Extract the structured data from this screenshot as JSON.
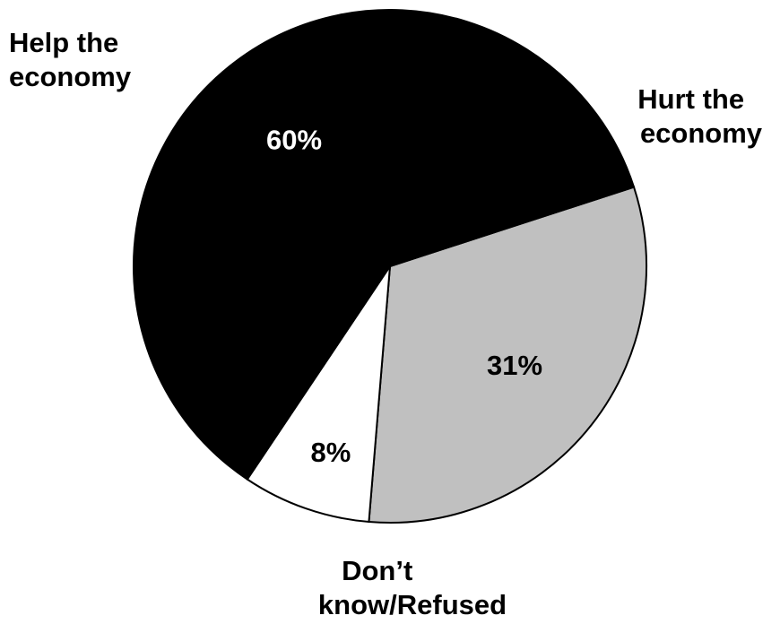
{
  "chart_data": {
    "type": "pie",
    "title": "",
    "slices": [
      {
        "label_lines": [
          "Hurt the",
          "economy"
        ],
        "value": 31,
        "value_label": "31%",
        "color": "#c0c0c0",
        "value_text_color": "#000000"
      },
      {
        "label_lines": [
          "Don’t",
          "know/Refused"
        ],
        "value": 8,
        "value_label": "8%",
        "color": "#ffffff",
        "value_text_color": "#000000"
      },
      {
        "label_lines": [
          "Help the",
          "economy"
        ],
        "value": 60,
        "value_label": "60%",
        "color": "#000000",
        "value_text_color": "#ffffff"
      }
    ],
    "legend": "none"
  }
}
